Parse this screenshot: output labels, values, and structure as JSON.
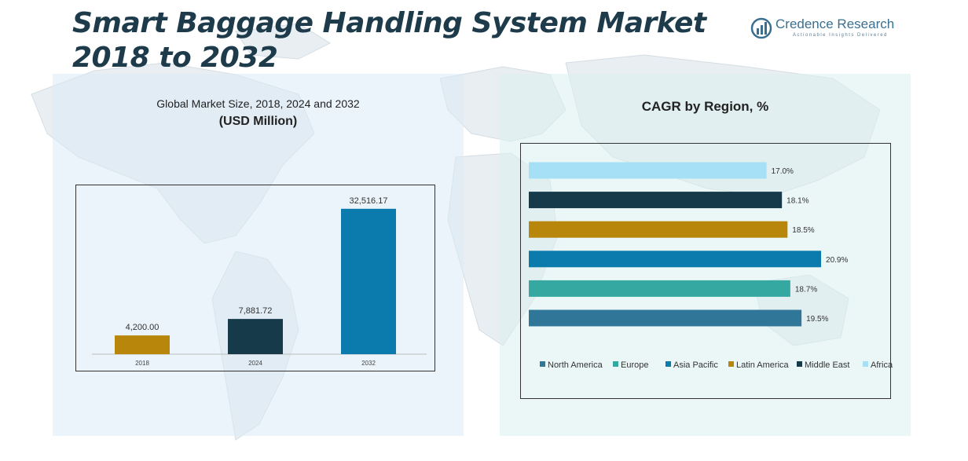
{
  "title": "Smart Baggage Handling System Market 2018 to 2032",
  "logo": {
    "name": "Credence Research",
    "tagline": "Actionable Insights Delivered"
  },
  "left_chart": {
    "subtitle": "Global Market Size, 2018, 2024 and 2032",
    "unit": "(USD Million)"
  },
  "right_chart": {
    "title": "CAGR by Region, %"
  },
  "colors": {
    "gold": "#b8860b",
    "navy": "#163a4a",
    "blue": "#0b7bad",
    "teal": "#35a8a2",
    "steel": "#2f7699",
    "sky": "#a6e0f7"
  },
  "chart_data": [
    {
      "type": "bar",
      "categories": [
        "2018",
        "2024",
        "2032"
      ],
      "values": [
        4200.0,
        7881.72,
        32516.17
      ],
      "value_labels": [
        "4,200.00",
        "7,881.72",
        "32,516.17"
      ],
      "bar_colors": [
        "#b8860b",
        "#163a4a",
        "#0b7bad"
      ],
      "ylim": [
        0,
        36000
      ],
      "grid": false
    },
    {
      "type": "bar",
      "orientation": "horizontal",
      "categories": [
        "North America",
        "Europe",
        "Asia Pacific",
        "Latin America",
        "Middle East",
        "Africa"
      ],
      "values": [
        19.5,
        18.7,
        20.9,
        18.5,
        18.1,
        17.0
      ],
      "value_labels": [
        "19.5%",
        "18.7%",
        "20.9%",
        "18.5%",
        "18.1%",
        "17.0%"
      ],
      "bar_colors": [
        "#2f7699",
        "#35a8a2",
        "#0b7bad",
        "#b8860b",
        "#163a4a",
        "#a6e0f7"
      ],
      "xlim": [
        0,
        23
      ],
      "legend_position": "bottom",
      "grid": false
    }
  ]
}
